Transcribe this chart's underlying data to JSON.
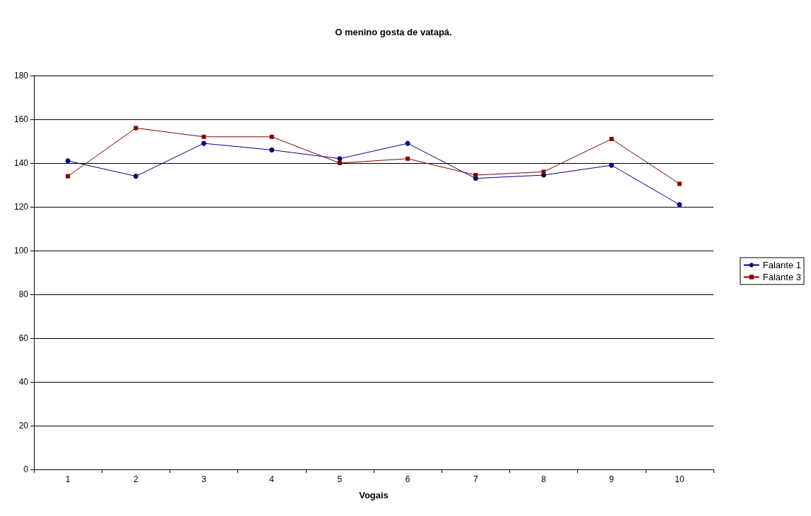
{
  "chart_data": {
    "type": "line",
    "title": "O menino gosta de vatapá.",
    "xlabel": "Vogais",
    "categories": [
      "1",
      "2",
      "3",
      "4",
      "5",
      "6",
      "7",
      "8",
      "9",
      "10"
    ],
    "series": [
      {
        "name": "Falante 1",
        "color": "#000080",
        "marker": "circle",
        "values": [
          141,
          134,
          149,
          146,
          142,
          149,
          133,
          134.5,
          139,
          121
        ]
      },
      {
        "name": "Falante 3",
        "color": "#800000",
        "marker": "square",
        "values": [
          134,
          156,
          152,
          152,
          140,
          142,
          134.5,
          136,
          151,
          130.5
        ]
      }
    ],
    "ylim": [
      0,
      180
    ],
    "yticks": [
      0,
      20,
      40,
      60,
      80,
      100,
      120,
      140,
      160,
      180
    ],
    "grid": "y",
    "legend": "right",
    "line_style": "solid"
  }
}
